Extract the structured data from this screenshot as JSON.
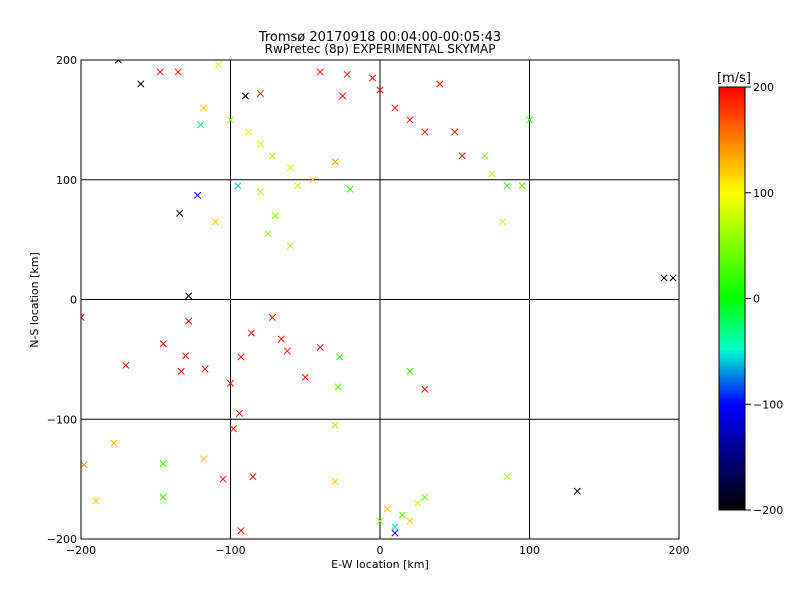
{
  "chart_data": {
    "type": "scatter",
    "title": "Tromsø 20170918 00:04:00-00:05:43",
    "subtitle": "RwPretec (8p) EXPERIMENTAL SKYMAP",
    "xlabel": "E-W location [km]",
    "ylabel": "N-S location [km]",
    "xlim": [
      -200,
      200
    ],
    "ylim": [
      -200,
      200
    ],
    "x_ticks": [
      -200,
      -100,
      0,
      100,
      200
    ],
    "y_ticks": [
      -200,
      -100,
      0,
      100,
      200
    ],
    "x_tick_labels": [
      "−200",
      "−100",
      "0",
      "100",
      "200"
    ],
    "y_tick_labels": [
      "−200",
      "−100",
      "0",
      "100",
      "200"
    ],
    "grid": true,
    "markers": [
      "x",
      "+"
    ],
    "colorbar": {
      "label": "[m/s]",
      "range": [
        -200,
        200
      ],
      "ticks": [
        200,
        100,
        0,
        -100,
        -200
      ],
      "tick_labels": [
        "200",
        "100",
        "0",
        "−100",
        "−200"
      ],
      "colors": [
        "#ff0000",
        "#ffff00",
        "#00ff00",
        "#00ffcc",
        "#0000ff",
        "#000000"
      ]
    },
    "points": [
      [
        -147,
        190,
        195,
        "x"
      ],
      [
        -135,
        190,
        190,
        "x"
      ],
      [
        -160,
        180,
        -200,
        "x"
      ],
      [
        -90,
        170,
        -200,
        "x"
      ],
      [
        -80,
        172,
        195,
        "x"
      ],
      [
        -40,
        190,
        190,
        "x"
      ],
      [
        -22,
        188,
        195,
        "x"
      ],
      [
        -5,
        185,
        195,
        "x"
      ],
      [
        -108,
        196,
        80,
        "x"
      ],
      [
        -118,
        160,
        120,
        "x"
      ],
      [
        -120,
        146,
        -30,
        "x"
      ],
      [
        -100,
        150,
        60,
        "x"
      ],
      [
        -80,
        130,
        90,
        "x"
      ],
      [
        -72,
        120,
        70,
        "x"
      ],
      [
        -60,
        110,
        90,
        "x"
      ],
      [
        -55,
        95,
        80,
        "x"
      ],
      [
        -88,
        140,
        95,
        "x"
      ],
      [
        -95,
        95,
        -60,
        "x"
      ],
      [
        -122,
        87,
        -110,
        "x"
      ],
      [
        -134,
        72,
        -200,
        "x"
      ],
      [
        -128,
        3,
        -200,
        "x"
      ],
      [
        -110,
        65,
        120,
        "x"
      ],
      [
        -80,
        90,
        70,
        "x"
      ],
      [
        -70,
        70,
        60,
        "x"
      ],
      [
        -75,
        55,
        60,
        "x"
      ],
      [
        -60,
        45,
        70,
        "x"
      ],
      [
        -45,
        100,
        120,
        "x"
      ],
      [
        -30,
        115,
        140,
        "x"
      ],
      [
        -25,
        170,
        195,
        "x"
      ],
      [
        0,
        175,
        195,
        "x"
      ],
      [
        10,
        160,
        190,
        "x"
      ],
      [
        20,
        150,
        195,
        "x"
      ],
      [
        30,
        140,
        190,
        "x"
      ],
      [
        40,
        180,
        195,
        "x"
      ],
      [
        50,
        140,
        190,
        "x"
      ],
      [
        55,
        120,
        190,
        "x"
      ],
      [
        70,
        120,
        60,
        "x"
      ],
      [
        75,
        105,
        60,
        "x"
      ],
      [
        85,
        95,
        20,
        "x"
      ],
      [
        95,
        95,
        40,
        "x"
      ],
      [
        100,
        150,
        20,
        "x"
      ],
      [
        82,
        65,
        80,
        "x"
      ],
      [
        -20,
        92,
        10,
        "x"
      ],
      [
        -130,
        -47,
        195,
        "x"
      ],
      [
        -133,
        -60,
        195,
        "x"
      ],
      [
        -145,
        -37,
        195,
        "x"
      ],
      [
        -170,
        -55,
        195,
        "x"
      ],
      [
        -117,
        -58,
        195,
        "x"
      ],
      [
        -100,
        -70,
        195,
        "x"
      ],
      [
        -93,
        -48,
        195,
        "x"
      ],
      [
        -94,
        -95,
        195,
        "x"
      ],
      [
        -98,
        -108,
        190,
        "x"
      ],
      [
        -128,
        -18,
        195,
        "x"
      ],
      [
        -200,
        -15,
        195,
        "x"
      ],
      [
        -62,
        -43,
        195,
        "x"
      ],
      [
        -40,
        -40,
        195,
        "x"
      ],
      [
        -50,
        -65,
        195,
        "x"
      ],
      [
        -66,
        -33,
        195,
        "x"
      ],
      [
        -72,
        -15,
        195,
        "x"
      ],
      [
        -86,
        -28,
        195,
        "x"
      ],
      [
        -27,
        -48,
        10,
        "x"
      ],
      [
        -28,
        -73,
        30,
        "x"
      ],
      [
        -30,
        -105,
        60,
        "x"
      ],
      [
        -85,
        -148,
        195,
        "x"
      ],
      [
        -105,
        -150,
        195,
        "x"
      ],
      [
        -118,
        -133,
        120,
        "x"
      ],
      [
        -145,
        -137,
        20,
        "x"
      ],
      [
        -145,
        -165,
        20,
        "x"
      ],
      [
        -178,
        -120,
        130,
        "x"
      ],
      [
        -198,
        -138,
        150,
        "x"
      ],
      [
        -190,
        -168,
        120,
        "x"
      ],
      [
        -93,
        -193,
        195,
        "x"
      ],
      [
        -30,
        -152,
        120,
        "x"
      ],
      [
        0,
        -185,
        60,
        "x"
      ],
      [
        5,
        -175,
        120,
        "x"
      ],
      [
        10,
        -190,
        -50,
        "x"
      ],
      [
        15,
        -180,
        40,
        "x"
      ],
      [
        20,
        -185,
        120,
        "x"
      ],
      [
        25,
        -170,
        80,
        "x"
      ],
      [
        30,
        -165,
        40,
        "x"
      ],
      [
        10,
        -195,
        -100,
        "x"
      ],
      [
        30,
        -75,
        195,
        "x"
      ],
      [
        85,
        -148,
        60,
        "x"
      ],
      [
        132,
        -160,
        -200,
        "x"
      ],
      [
        190,
        18,
        -200,
        "x"
      ],
      [
        196,
        18,
        -200,
        "x"
      ],
      [
        -175,
        200,
        -200,
        "x"
      ],
      [
        20,
        -60,
        20,
        "x"
      ]
    ]
  }
}
